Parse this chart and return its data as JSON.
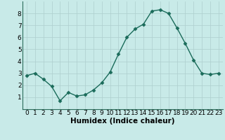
{
  "x": [
    0,
    1,
    2,
    3,
    4,
    5,
    6,
    7,
    8,
    9,
    10,
    11,
    12,
    13,
    14,
    15,
    16,
    17,
    18,
    19,
    20,
    21,
    22,
    23
  ],
  "y": [
    2.8,
    3.0,
    2.5,
    1.9,
    0.7,
    1.4,
    1.1,
    1.2,
    1.6,
    2.2,
    3.1,
    4.6,
    6.0,
    6.7,
    7.1,
    8.2,
    8.3,
    8.0,
    6.8,
    5.5,
    4.1,
    3.0,
    2.9,
    3.0
  ],
  "line_color": "#1a6b5a",
  "marker": "D",
  "marker_size": 2.5,
  "xlabel": "Humidex (Indice chaleur)",
  "xlabel_fontsize": 7.5,
  "xlim": [
    -0.5,
    23.5
  ],
  "ylim": [
    0,
    9
  ],
  "yticks": [
    1,
    2,
    3,
    4,
    5,
    6,
    7,
    8
  ],
  "xticks": [
    0,
    1,
    2,
    3,
    4,
    5,
    6,
    7,
    8,
    9,
    10,
    11,
    12,
    13,
    14,
    15,
    16,
    17,
    18,
    19,
    20,
    21,
    22,
    23
  ],
  "background_color": "#c8eae8",
  "grid_color": "#aecece",
  "tick_fontsize": 6.5,
  "line_width": 1.0
}
